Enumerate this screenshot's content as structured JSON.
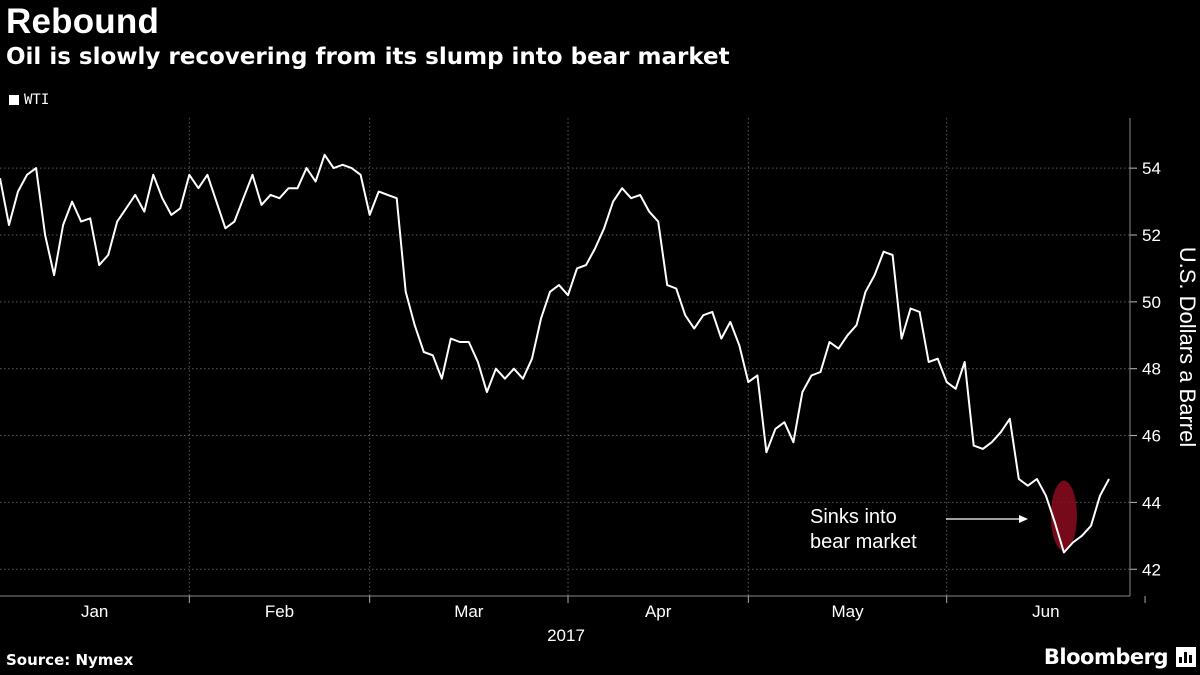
{
  "header": {
    "title": "Rebound",
    "subtitle": "Oil is slowly recovering from its slump into bear market"
  },
  "footer": {
    "source": "Source: Nymex",
    "brand": "Bloomberg"
  },
  "colors": {
    "background": "#000000",
    "line": "#ffffff",
    "grid": "#5a5a5a",
    "highlight": "#8b0a1e"
  },
  "chart_data": {
    "type": "line",
    "title": "Rebound",
    "subtitle": "Oil is slowly recovering from its slump into bear market",
    "ylabel": "U.S. Dollars a Barrel",
    "xlabel": "2017",
    "ylim": [
      41.2,
      55.5
    ],
    "yticks": [
      42,
      44,
      46,
      48,
      50,
      52,
      54
    ],
    "y_axis_position": "right",
    "grid": true,
    "legend": {
      "position": "top-left",
      "entries": [
        "WTI"
      ]
    },
    "months": [
      {
        "label": "Jan",
        "start": 0,
        "end": 21
      },
      {
        "label": "Feb",
        "start": 21,
        "end": 41
      },
      {
        "label": "Mar",
        "start": 41,
        "end": 63
      },
      {
        "label": "Apr",
        "start": 63,
        "end": 83
      },
      {
        "label": "May",
        "start": 83,
        "end": 105
      },
      {
        "label": "Jun",
        "start": 105,
        "end": 127
      }
    ],
    "series": [
      {
        "name": "WTI",
        "values": [
          53.7,
          52.3,
          53.3,
          53.8,
          54.0,
          52.0,
          50.8,
          52.3,
          53.0,
          52.4,
          52.5,
          51.1,
          51.4,
          52.4,
          52.8,
          53.2,
          52.7,
          53.8,
          53.1,
          52.6,
          52.8,
          53.8,
          53.4,
          53.8,
          53.0,
          52.2,
          52.4,
          53.1,
          53.8,
          52.9,
          53.2,
          53.1,
          53.4,
          53.4,
          54.0,
          53.6,
          54.4,
          54.0,
          54.1,
          54.0,
          53.8,
          52.6,
          53.3,
          53.2,
          53.1,
          50.3,
          49.3,
          48.5,
          48.4,
          47.7,
          48.9,
          48.8,
          48.8,
          48.2,
          47.3,
          48.0,
          47.7,
          48.0,
          47.7,
          48.3,
          49.5,
          50.3,
          50.5,
          50.2,
          51.0,
          51.1,
          51.6,
          52.2,
          53.0,
          53.4,
          53.1,
          53.2,
          52.7,
          52.4,
          50.5,
          50.4,
          49.6,
          49.2,
          49.6,
          49.7,
          48.9,
          49.4,
          48.7,
          47.6,
          47.8,
          45.5,
          46.2,
          46.4,
          45.8,
          47.3,
          47.8,
          47.9,
          48.8,
          48.6,
          49.0,
          49.3,
          50.3,
          50.8,
          51.5,
          51.4,
          48.9,
          49.8,
          49.7,
          48.2,
          48.3,
          47.6,
          47.4,
          48.2,
          45.7,
          45.6,
          45.8,
          46.1,
          46.5,
          44.7,
          44.5,
          44.7,
          44.2,
          43.4,
          42.5,
          42.8,
          43.0,
          43.3,
          44.2,
          44.7
        ]
      }
    ],
    "annotations": [
      {
        "text_lines": [
          "Sinks into",
          "bear market"
        ],
        "x": 118,
        "y": 43.6
      }
    ]
  }
}
